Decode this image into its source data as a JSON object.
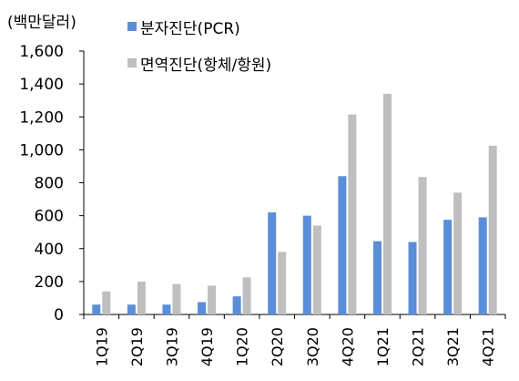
{
  "chart_data": {
    "type": "bar",
    "unit_label": "(백만달러)",
    "categories": [
      "1Q19",
      "2Q19",
      "3Q19",
      "4Q19",
      "1Q20",
      "2Q20",
      "3Q20",
      "4Q20",
      "1Q21",
      "2Q21",
      "3Q21",
      "4Q21"
    ],
    "series": [
      {
        "name": "분자진단(PCR)",
        "color": "#5b8ed8",
        "values": [
          60,
          60,
          60,
          75,
          110,
          620,
          600,
          840,
          445,
          440,
          575,
          590
        ]
      },
      {
        "name": "면역진단(항체/항원)",
        "color": "#bfbfbf",
        "values": [
          140,
          200,
          185,
          175,
          225,
          380,
          540,
          1215,
          1340,
          835,
          740,
          1025
        ]
      }
    ],
    "ylim": [
      0,
      1600
    ],
    "yticks": [
      "0",
      "200",
      "400",
      "600",
      "800",
      "1,000",
      "1,200",
      "1,400",
      "1,600"
    ],
    "ytick_values": [
      0,
      200,
      400,
      600,
      800,
      1000,
      1200,
      1400,
      1600
    ],
    "grid": false,
    "legend_position": "top-left"
  }
}
